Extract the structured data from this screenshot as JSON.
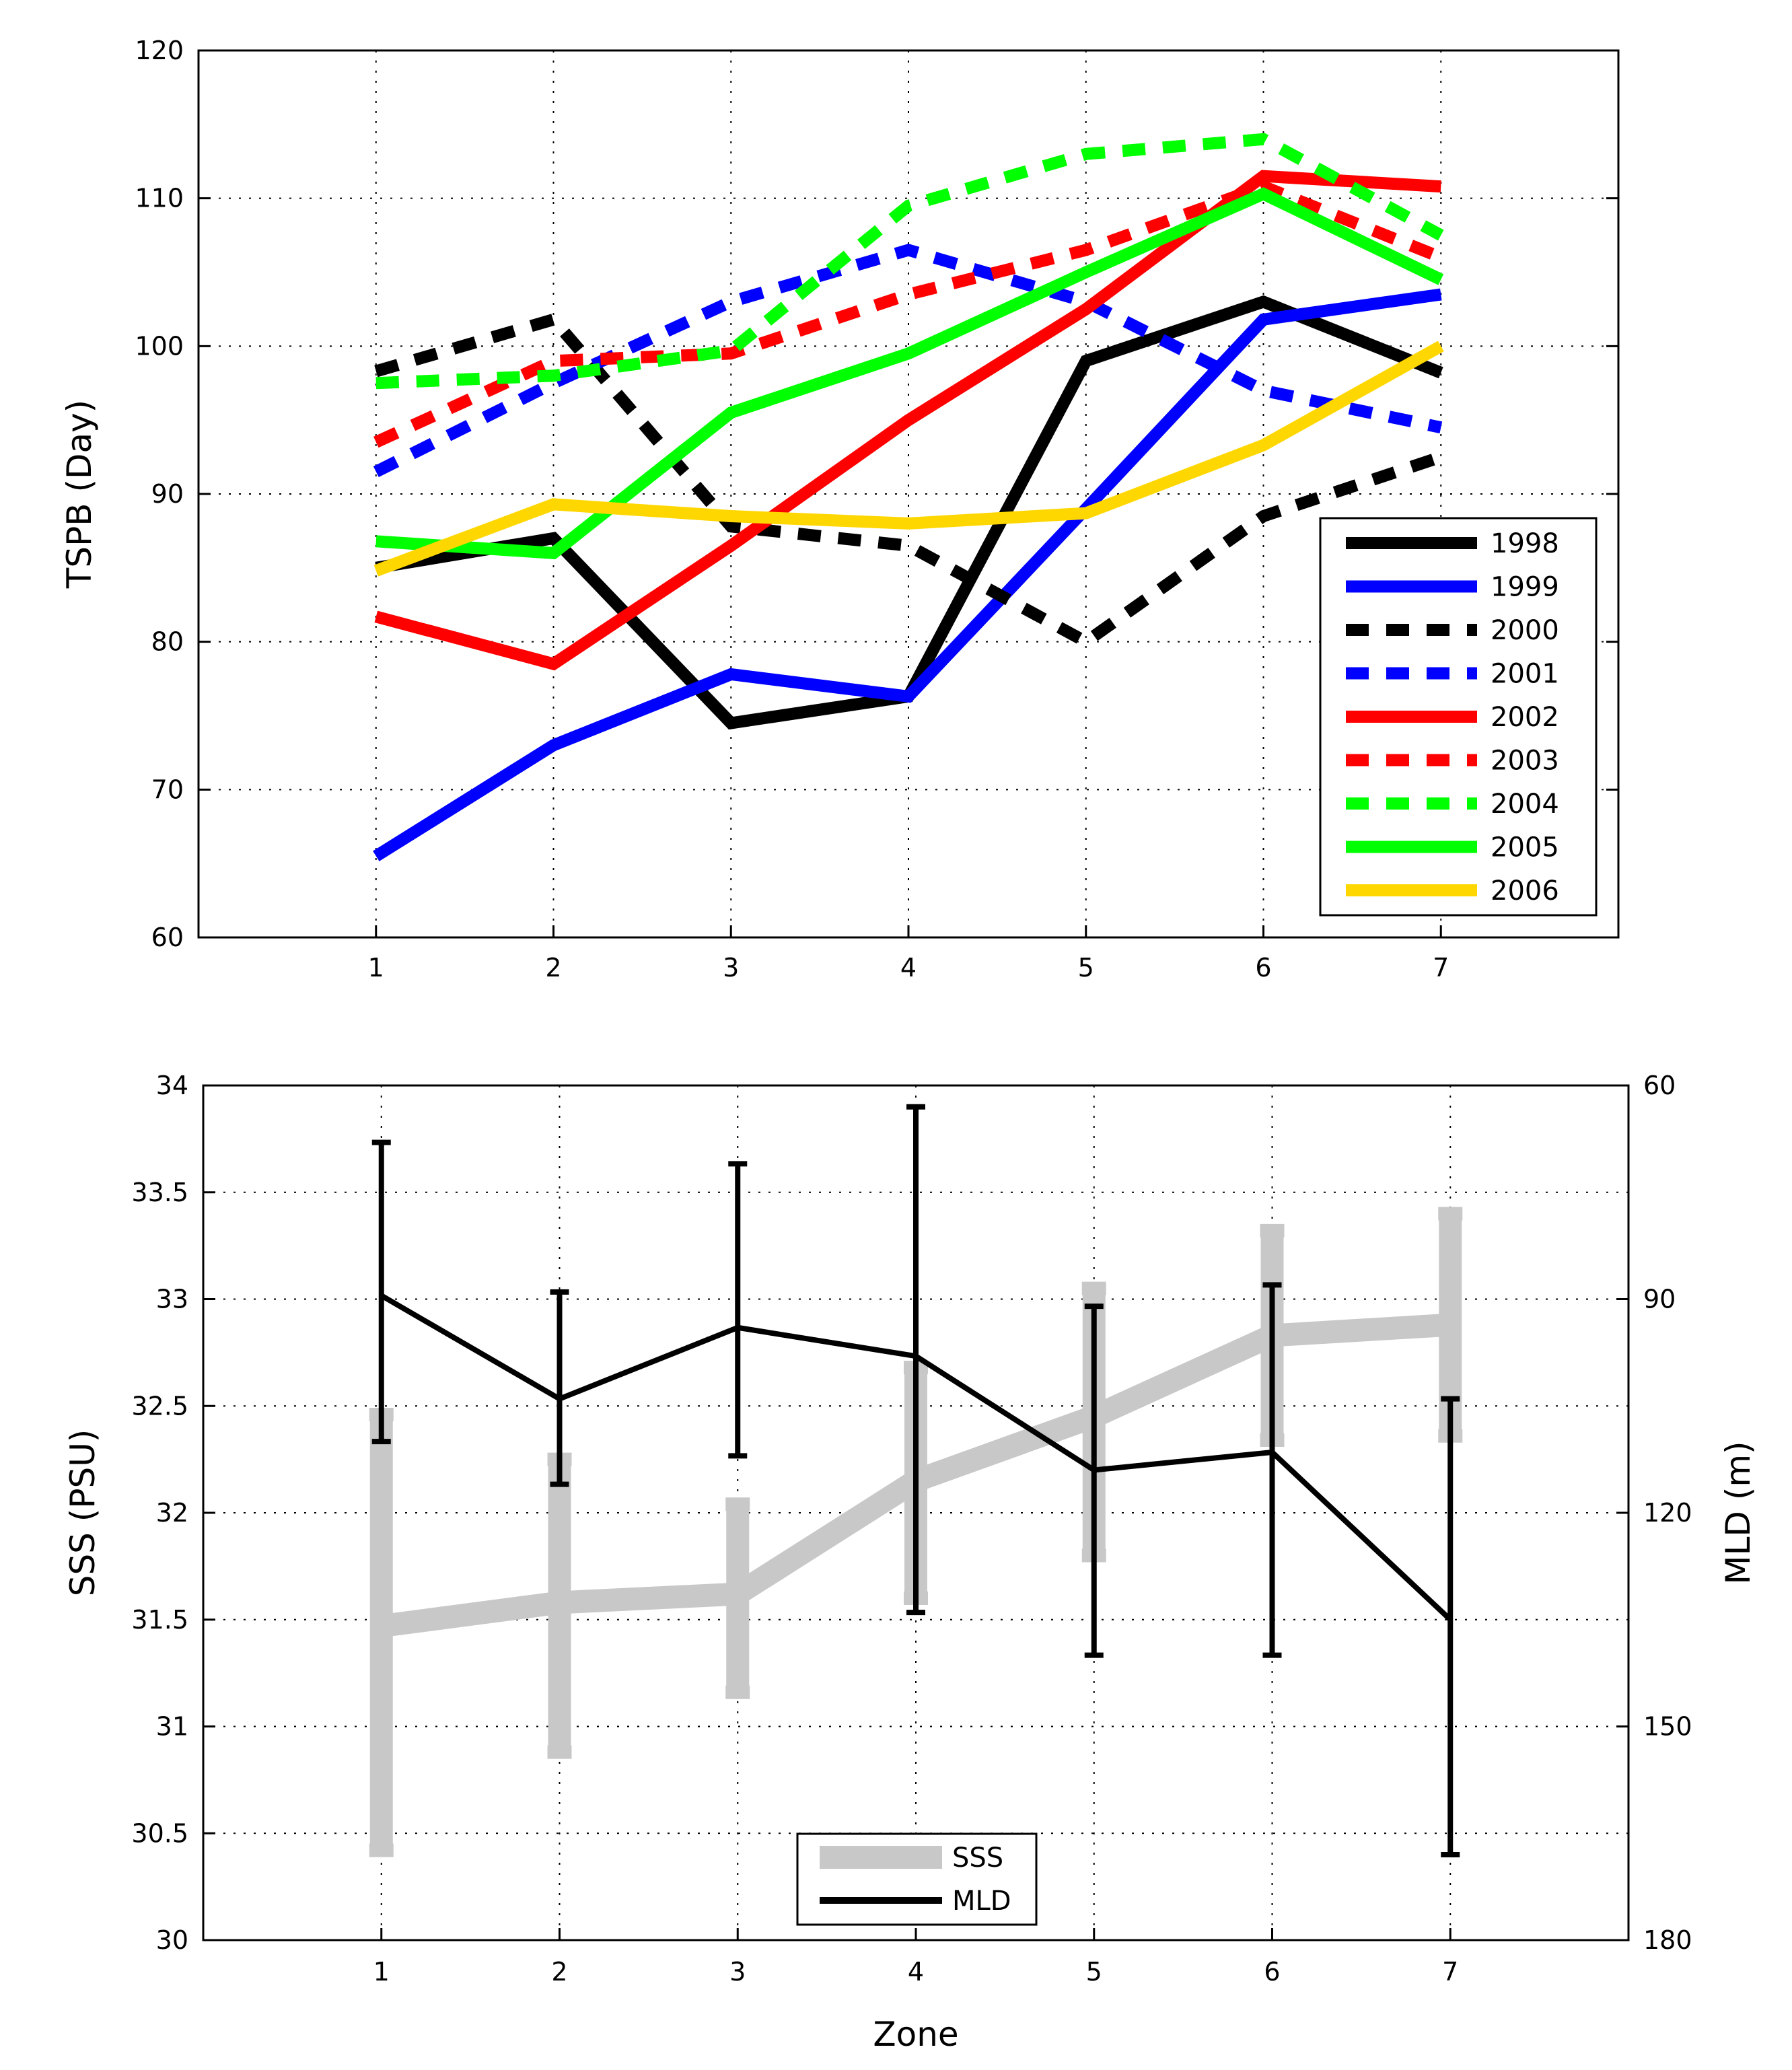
{
  "chart_data": [
    {
      "type": "line",
      "title": "",
      "ylabel": "TSPB (Day)",
      "xlabel": "",
      "x": [
        1,
        2,
        3,
        4,
        5,
        6,
        7
      ],
      "xlim": [
        0,
        8
      ],
      "ylim": [
        60,
        120
      ],
      "xticks": [
        "1",
        "2",
        "3",
        "4",
        "5",
        "6",
        "7"
      ],
      "yticks": [
        "60",
        "70",
        "80",
        "90",
        "100",
        "110",
        "120"
      ],
      "grid": true,
      "legend_position": "lower-right",
      "series": [
        {
          "name": "1998",
          "color": "#000000",
          "dash": "solid",
          "values": [
            85,
            87,
            74.5,
            76.3,
            99,
            103,
            98.2
          ]
        },
        {
          "name": "1999",
          "color": "#0000ff",
          "dash": "solid",
          "values": [
            65.5,
            73,
            77.8,
            76.3,
            89,
            101.8,
            103.5
          ]
        },
        {
          "name": "2000",
          "color": "#000000",
          "dash": "dashed",
          "values": [
            98.3,
            101.8,
            87.8,
            86.5,
            80,
            88.5,
            92.5
          ]
        },
        {
          "name": "2001",
          "color": "#0000ff",
          "dash": "dashed",
          "values": [
            91.5,
            97.5,
            103,
            106.5,
            103,
            97,
            94.5
          ]
        },
        {
          "name": "2002",
          "color": "#ff0000",
          "dash": "solid",
          "values": [
            81.7,
            78.5,
            86.5,
            95,
            102.5,
            111.5,
            110.8
          ]
        },
        {
          "name": "2003",
          "color": "#ff0000",
          "dash": "dashed",
          "values": [
            93.5,
            99,
            99.5,
            103.5,
            106.5,
            110.8,
            106
          ]
        },
        {
          "name": "2004",
          "color": "#00ff00",
          "dash": "dashed",
          "values": [
            97.5,
            98,
            99.7,
            109.5,
            113,
            114,
            107.5
          ]
        },
        {
          "name": "2005",
          "color": "#00ff00",
          "dash": "solid",
          "values": [
            86.8,
            86,
            95.5,
            99.5,
            105,
            110.3,
            104.5
          ]
        },
        {
          "name": "2006",
          "color": "#ffd700",
          "dash": "solid",
          "values": [
            84.8,
            89.3,
            88.5,
            88,
            88.7,
            93.3,
            100
          ]
        }
      ]
    },
    {
      "type": "line",
      "title": "",
      "xlabel": "Zone",
      "ylabel": "SSS (PSU)",
      "ylabel_right": "MLD (m)",
      "x": [
        1,
        2,
        3,
        4,
        5,
        6,
        7
      ],
      "xlim": [
        0,
        8
      ],
      "ylim": [
        30,
        34
      ],
      "ylim_right": [
        180,
        60
      ],
      "xticks": [
        "1",
        "2",
        "3",
        "4",
        "5",
        "6",
        "7"
      ],
      "yticks": [
        "30",
        "30.5",
        "31",
        "31.5",
        "32",
        "32.5",
        "33",
        "33.5",
        "34"
      ],
      "yticks_right": [
        "60",
        "90",
        "120",
        "150",
        "180"
      ],
      "grid": true,
      "legend_position": "bottom-center",
      "series": [
        {
          "name": "SSS",
          "axis": "left",
          "color": "#c8c8c8",
          "values": [
            31.47,
            31.58,
            31.62,
            32.15,
            32.45,
            32.83,
            32.88
          ],
          "error_low": [
            30.42,
            30.88,
            31.16,
            31.6,
            31.8,
            32.34,
            32.36
          ],
          "error_high": [
            32.46,
            32.25,
            32.04,
            32.68,
            33.05,
            33.32,
            33.4
          ]
        },
        {
          "name": "MLD",
          "axis": "right",
          "color": "#000000",
          "values": [
            89.5,
            104,
            94,
            98,
            114,
            111.5,
            135
          ],
          "error_low": [
            68,
            89,
            71,
            63,
            91,
            88,
            104
          ],
          "error_high": [
            110,
            116,
            112,
            134,
            140,
            140,
            168
          ]
        }
      ]
    }
  ]
}
